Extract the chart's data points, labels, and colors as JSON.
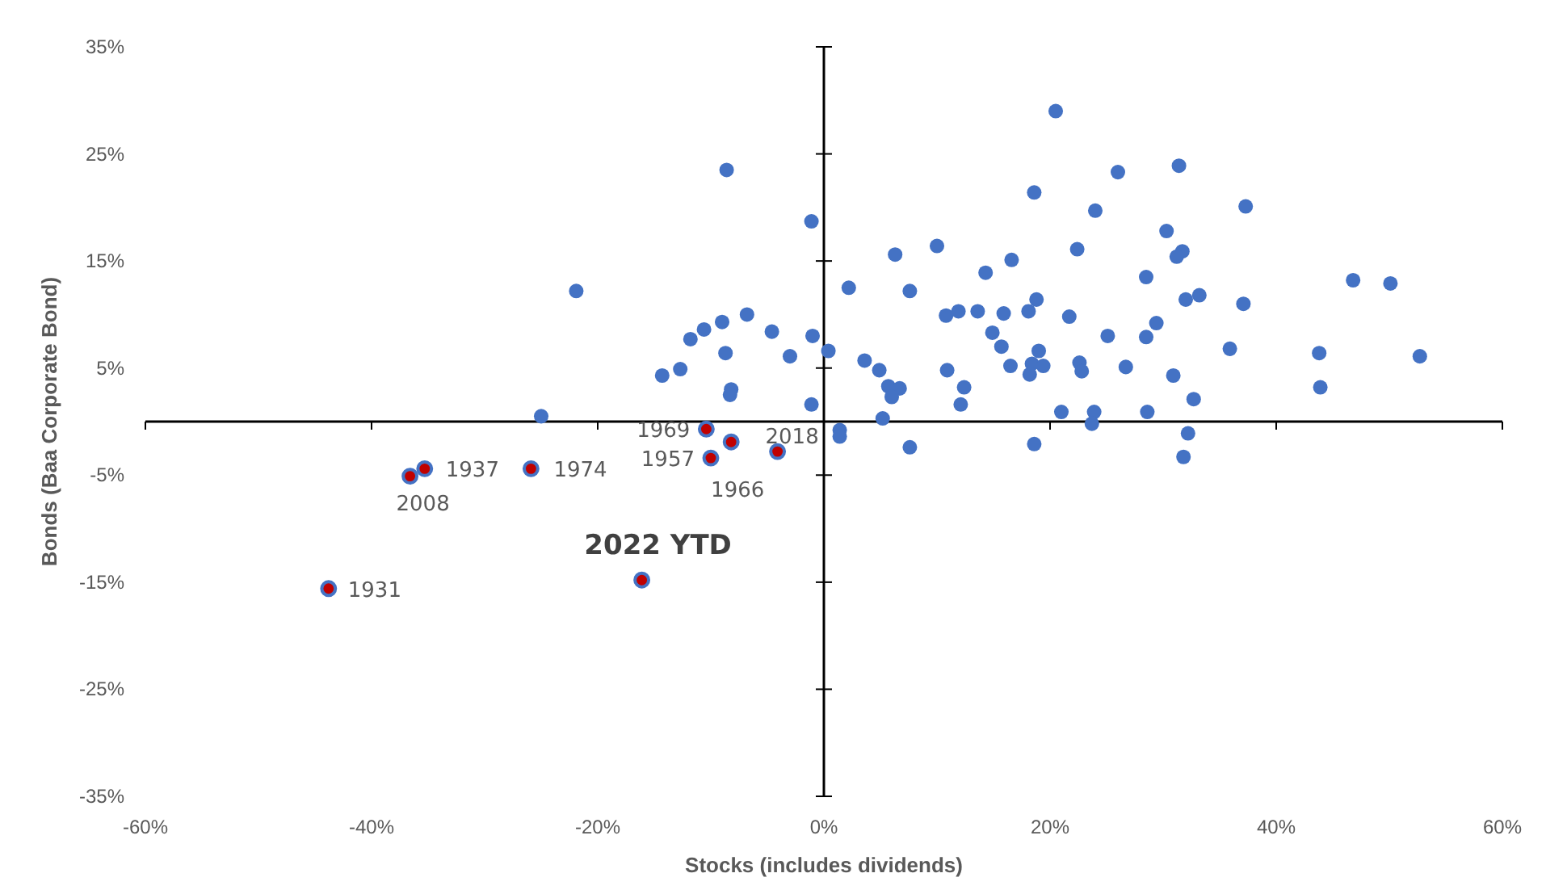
{
  "chart_data": {
    "type": "scatter",
    "xlabel": "Stocks (includes dividends)",
    "ylabel": "Bonds (Baa Corporate Bond)",
    "xlim": [
      -60,
      60
    ],
    "ylim": [
      -35,
      35
    ],
    "xticks": [
      {
        "value": -60,
        "label": "-60%"
      },
      {
        "value": -40,
        "label": "-40%"
      },
      {
        "value": -20,
        "label": "-20%"
      },
      {
        "value": 0,
        "label": "0%"
      },
      {
        "value": 20,
        "label": "20%"
      },
      {
        "value": 40,
        "label": "40%"
      },
      {
        "value": 60,
        "label": "60%"
      }
    ],
    "yticks": [
      {
        "value": -35,
        "label": "-35%"
      },
      {
        "value": -25,
        "label": "-25%"
      },
      {
        "value": -15,
        "label": "-15%"
      },
      {
        "value": -5,
        "label": "-5%"
      },
      {
        "value": 5,
        "label": "5%"
      },
      {
        "value": 15,
        "label": "15%"
      },
      {
        "value": 25,
        "label": "25%"
      },
      {
        "value": 35,
        "label": "35%"
      }
    ],
    "marker": "circle",
    "series": [
      {
        "color": "#4472c4",
        "x": [
          -8.6,
          -1.1,
          -21.9,
          2.2,
          6.3,
          7.6,
          10,
          16.6,
          14.3,
          -6.8,
          -9,
          -10.6,
          -11.8,
          -4.6,
          -1,
          -8.7,
          -3,
          0.4,
          -14.3,
          -12.7,
          -8.2,
          -8.3,
          -1.1,
          -25,
          3.6,
          4.9,
          5.7,
          6.7,
          6,
          5.2,
          1.4,
          1.4,
          7.6,
          10.8,
          11.9,
          13.6,
          15.9,
          14.9,
          15.7,
          16.5,
          10.9,
          12.4,
          12.1,
          20.5,
          26,
          31.4,
          18.6,
          24,
          37.3,
          30.3,
          22.4,
          31.7,
          31.2,
          28.5,
          46.8,
          50.1,
          32,
          33.2,
          37.1,
          18.8,
          18.1,
          21.7,
          29.4,
          19,
          25.1,
          28.5,
          35.9,
          43.8,
          52.7,
          18.4,
          19.4,
          18.2,
          22.6,
          22.8,
          26.7,
          30.9,
          43.9,
          32.7,
          21,
          23.9,
          28.6,
          23.7,
          18.6,
          32.2,
          31.8
        ],
        "values": [
          23.5,
          18.7,
          12.2,
          12.5,
          15.6,
          12.2,
          16.4,
          15.1,
          13.9,
          10,
          9.3,
          8.6,
          7.7,
          8.4,
          8,
          6.4,
          6.1,
          6.6,
          4.3,
          4.9,
          3,
          2.5,
          1.6,
          0.5,
          5.7,
          4.8,
          3.3,
          3.1,
          2.3,
          0.3,
          -0.8,
          -1.4,
          -2.4,
          9.9,
          10.3,
          10.3,
          10.1,
          8.3,
          7,
          5.2,
          4.8,
          3.2,
          1.6,
          29,
          23.3,
          23.9,
          21.4,
          19.7,
          20.1,
          17.8,
          16.1,
          15.9,
          15.4,
          13.5,
          13.2,
          12.9,
          11.4,
          11.8,
          11,
          11.4,
          10.3,
          9.8,
          9.2,
          6.6,
          8,
          7.9,
          6.8,
          6.4,
          6.1,
          5.4,
          5.2,
          4.4,
          5.5,
          4.7,
          5.1,
          4.3,
          3.2,
          2.1,
          0.9,
          0.9,
          0.9,
          -0.2,
          -2.1,
          -1.1,
          -3.3
        ]
      },
      {
        "color": "#c00000",
        "x": [
          -43.8,
          -36.6,
          -35.3,
          -25.9,
          -10.4,
          -10,
          -8.2,
          -4.1,
          -16.1
        ],
        "values": [
          -15.6,
          -5.1,
          -4.4,
          -4.4,
          -0.7,
          -3.4,
          -1.9,
          -2.8,
          -14.8
        ]
      }
    ],
    "annotations": [
      {
        "text": "1931",
        "x": -43.8,
        "y": -15.6
      },
      {
        "text": "2008",
        "x": -36.6,
        "y": -5.1
      },
      {
        "text": "1937",
        "x": -35.3,
        "y": -4.4
      },
      {
        "text": "1974",
        "x": -25.9,
        "y": -4.4
      },
      {
        "text": "1969",
        "x": -10.4,
        "y": -0.7
      },
      {
        "text": "1957",
        "x": -10,
        "y": -3.4
      },
      {
        "text": "1966",
        "x": -8.2,
        "y": -1.9
      },
      {
        "text": "2018",
        "x": -4.1,
        "y": -2.8
      },
      {
        "text": "2022 YTD",
        "x": -16.1,
        "y": -14.8
      }
    ]
  }
}
